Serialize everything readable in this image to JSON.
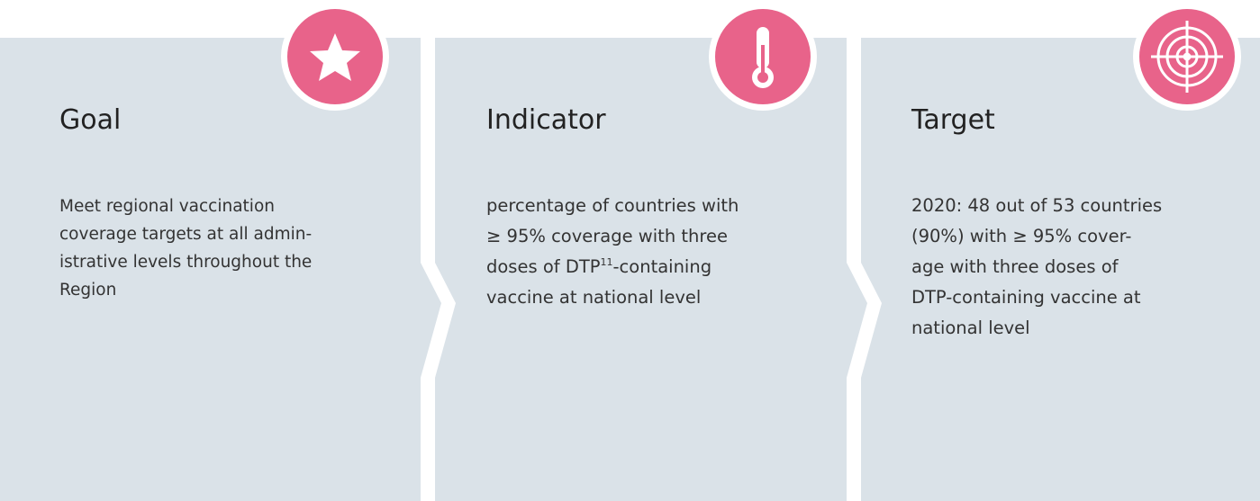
{
  "panels": [
    {
      "title": "Goal",
      "lines": [
        "Meet regional vaccination",
        "coverage targets at all admin-",
        "istrative levels throughout the",
        "Region"
      ]
    },
    {
      "title": "Indicator",
      "lines": [
        "percentage of countries with",
        "≥ 95% coverage with three",
        {
          "text": "doses of DTP",
          "sup": "11",
          "after": "-containing"
        },
        "vaccine at national level"
      ]
    },
    {
      "title": "Target",
      "lines": [
        "2020: 48 out of 53 countries",
        "(90%) with ≥ 95% cover-",
        "age with three doses of",
        "DTP-containing vaccine at",
        "national level"
      ]
    }
  ]
}
